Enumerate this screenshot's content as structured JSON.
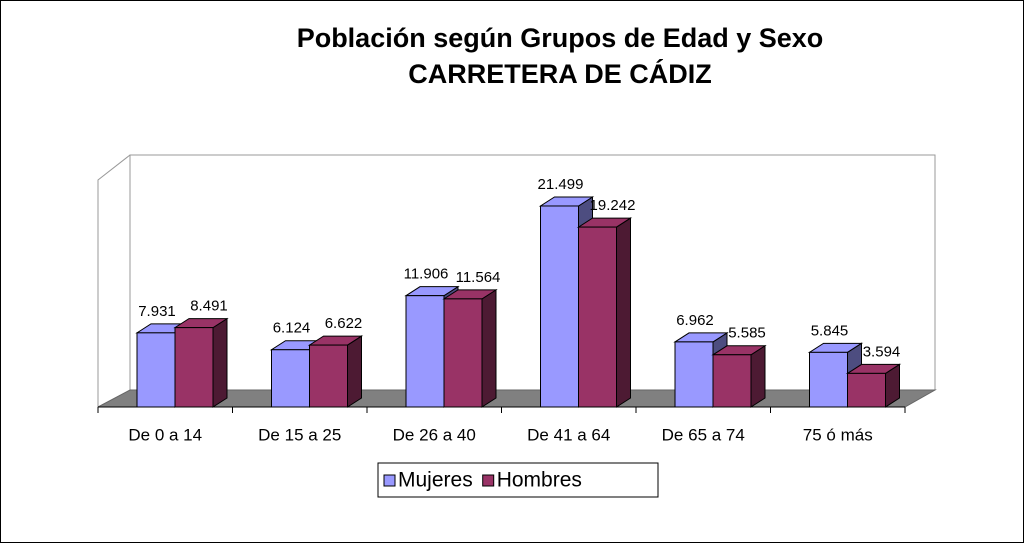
{
  "chart_data": {
    "type": "bar3d",
    "title": "Población según Grupos de Edad y Sexo",
    "subtitle": "CARRETERA DE CÁDIZ",
    "categories": [
      "De 0 a 14",
      "De 15 a 25",
      "De 26 a 40",
      "De 41 a 64",
      "De 65 a 74",
      "75 ó más"
    ],
    "series": [
      {
        "name": "Mujeres",
        "color": "#9999ff",
        "side": "#4d4d80",
        "values": [
          7931,
          6124,
          11906,
          21499,
          6962,
          5845
        ],
        "value_labels": [
          "7.931",
          "6.124",
          "11.906",
          "21.499",
          "6.962",
          "5.845"
        ]
      },
      {
        "name": "Hombres",
        "color": "#993366",
        "side": "#4d1a33",
        "values": [
          8491,
          6622,
          11564,
          19242,
          5585,
          3594
        ],
        "value_labels": [
          "8.491",
          "6.622",
          "11.564",
          "19.242",
          "5.585",
          "3.594"
        ]
      }
    ],
    "legend": "bottom"
  }
}
